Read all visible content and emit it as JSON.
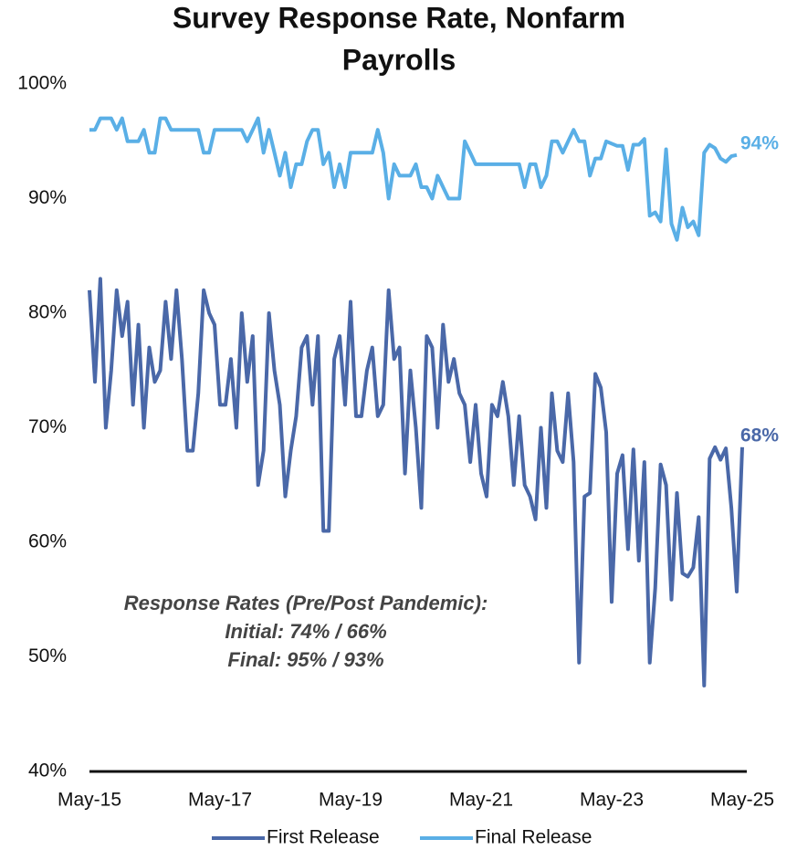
{
  "chart_data": {
    "type": "line",
    "title": [
      "Survey Response Rate, Nonfarm",
      "Payrolls"
    ],
    "annotation": [
      "Response Rates (Pre/Post Pandemic):",
      "Initial: 74% / 66%",
      "Final: 95% / 93%"
    ],
    "categories": [
      "May-15",
      null,
      null,
      null,
      null,
      null,
      null,
      null,
      null,
      null,
      null,
      null,
      null,
      null,
      null,
      null,
      null,
      null,
      null,
      null,
      null,
      null,
      null,
      null,
      "May-17",
      null,
      null,
      null,
      null,
      null,
      null,
      null,
      null,
      null,
      null,
      null,
      null,
      null,
      null,
      null,
      null,
      null,
      null,
      null,
      null,
      null,
      null,
      null,
      "May-19",
      null,
      null,
      null,
      null,
      null,
      null,
      null,
      null,
      null,
      null,
      null,
      null,
      null,
      null,
      null,
      null,
      null,
      null,
      null,
      null,
      null,
      null,
      null,
      "May-21",
      null,
      null,
      null,
      null,
      null,
      null,
      null,
      null,
      null,
      null,
      null,
      null,
      null,
      null,
      null,
      null,
      null,
      null,
      null,
      null,
      null,
      null,
      null,
      "May-23",
      null,
      null,
      null,
      null,
      null,
      null,
      null,
      null,
      null,
      null,
      null,
      null,
      null,
      null,
      null,
      null,
      null,
      null,
      null,
      null,
      null,
      null,
      null,
      "May-25"
    ],
    "ylim": [
      40,
      100
    ],
    "yticks": [
      {
        "value": 40,
        "label": "40%"
      },
      {
        "value": 50,
        "label": "50%"
      },
      {
        "value": 60,
        "label": "60%"
      },
      {
        "value": 70,
        "label": "70%"
      },
      {
        "value": 80,
        "label": "80%"
      },
      {
        "value": 90,
        "label": "90%"
      },
      {
        "value": 100,
        "label": "100%"
      }
    ],
    "series": [
      {
        "name": "First Release",
        "color": "#4a68a8",
        "end_label": "68%",
        "values": [
          82,
          74,
          83,
          70,
          75,
          82,
          78,
          81,
          72,
          79,
          70,
          77,
          74,
          75,
          81,
          76,
          82,
          76,
          68,
          68,
          73,
          82,
          80,
          79,
          72,
          72,
          76,
          70,
          80,
          74,
          78,
          65,
          68,
          80,
          75,
          72,
          64,
          68,
          71,
          77,
          78,
          72,
          78,
          61,
          61,
          76,
          78,
          72,
          81,
          71,
          71,
          75,
          77,
          71,
          72,
          82,
          76,
          77,
          66,
          75,
          70,
          63,
          78,
          77,
          70,
          79,
          74,
          76,
          73,
          72,
          67,
          72,
          66,
          64,
          72,
          71,
          74,
          71,
          65,
          71,
          65,
          64,
          62,
          70,
          63,
          73,
          68,
          67,
          73,
          67,
          49.5,
          64,
          64.3,
          74.7,
          73.5,
          69.6,
          54.8,
          66,
          67.6,
          59.4,
          68.1,
          58.4,
          67,
          49.5,
          56,
          66.8,
          65,
          55,
          64.3,
          57.3,
          57,
          57.8,
          62.2,
          47.5,
          67.3,
          68.3,
          67.2,
          68.2,
          63,
          55.7,
          68.3
        ]
      },
      {
        "name": "Final Release",
        "color": "#5aafe6",
        "end_label": "94%",
        "values": [
          96,
          96,
          97,
          97,
          97,
          96,
          97,
          95,
          95,
          95,
          96,
          94,
          94,
          97,
          97,
          96,
          96,
          96,
          96,
          96,
          96,
          94,
          94,
          96,
          96,
          96,
          96,
          96,
          96,
          95,
          96,
          97,
          94,
          96,
          94,
          92,
          94,
          91,
          93,
          93,
          95,
          96,
          96,
          93,
          94,
          91,
          93,
          91,
          94,
          94,
          94,
          94,
          94,
          96,
          94,
          90,
          93,
          92,
          92,
          92,
          93,
          91,
          91,
          90,
          92,
          91,
          90,
          90,
          90,
          95,
          94,
          93,
          93,
          93,
          93,
          93,
          93,
          93,
          93,
          93,
          91,
          93,
          93,
          91,
          92,
          95,
          95,
          94,
          95,
          96,
          95,
          95,
          92,
          93.5,
          93.5,
          95,
          94.8,
          94.6,
          94.6,
          92.5,
          94.7,
          94.7,
          95.2,
          88.5,
          88.8,
          88,
          94.3,
          87.8,
          86.4,
          89.2,
          87.5,
          88,
          86.8,
          94,
          94.7,
          94.4,
          93.5,
          93.2,
          93.7,
          93.8,
          null
        ]
      }
    ]
  }
}
